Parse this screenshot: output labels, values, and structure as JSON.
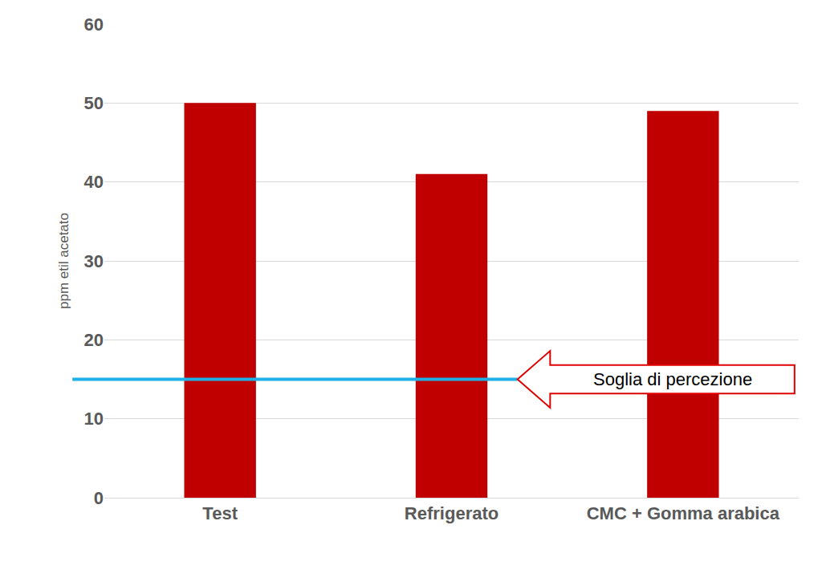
{
  "chart_data": {
    "type": "bar",
    "y_label": "ppm etil acetato",
    "categories": [
      "Test",
      "Refrigerato",
      "CMC + Gomma arabica"
    ],
    "values": [
      50,
      41,
      49
    ],
    "color": "#c00000",
    "ylim": [
      0,
      60
    ],
    "yticks": [
      0,
      10,
      20,
      30,
      40,
      50,
      60
    ],
    "grid": true,
    "threshold": {
      "value": 15,
      "label": "Soglia di percezione",
      "color": "#1fb0e6"
    }
  }
}
